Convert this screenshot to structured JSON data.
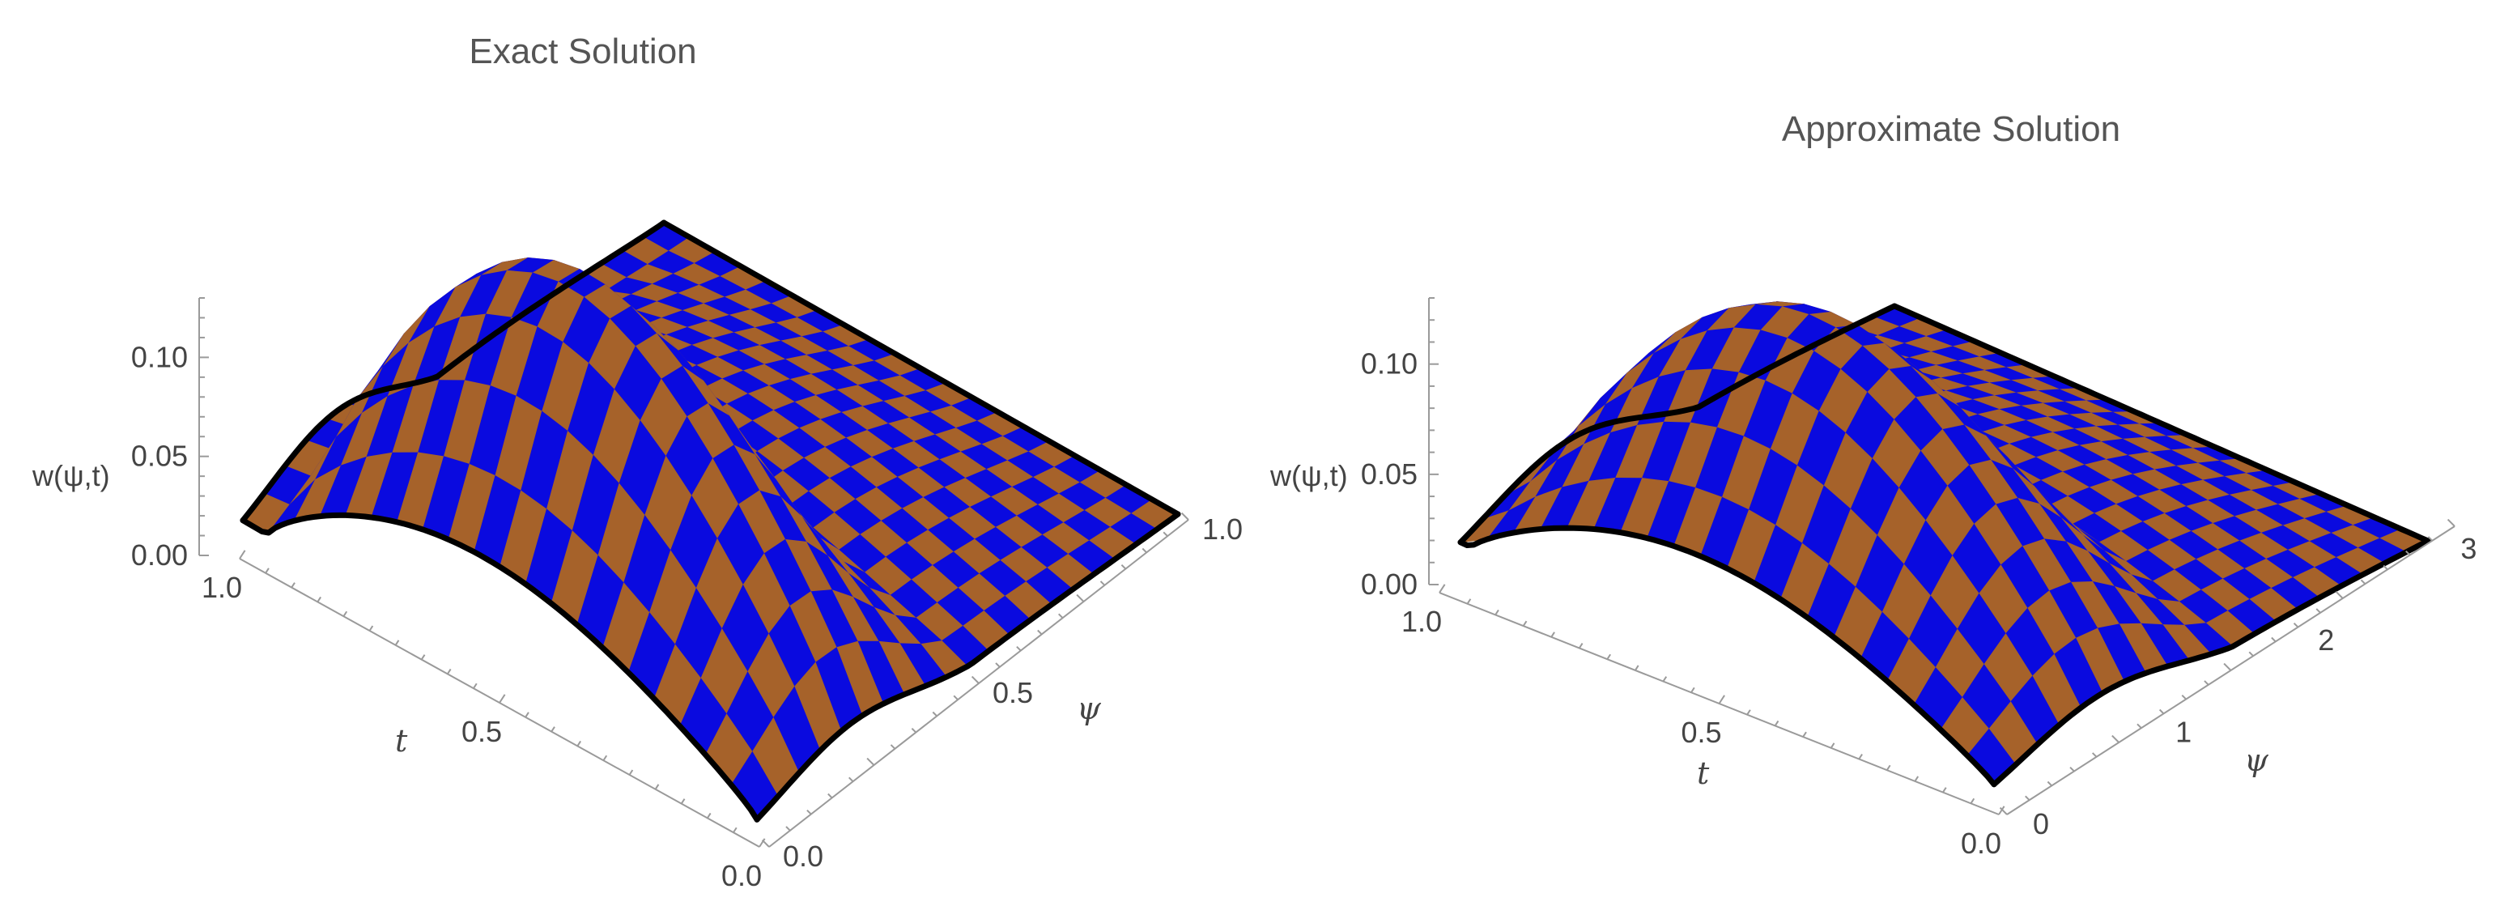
{
  "chart_data": [
    {
      "type": "surface3d",
      "title": "Exact Solution",
      "xlabel": "t",
      "ylabel": "ψ",
      "zlabel": "w(ψ,t)",
      "t_range": [
        0,
        1
      ],
      "psi_range": [
        0,
        1
      ],
      "z_range": [
        0,
        0.13
      ],
      "t_ticks": [
        "0.0",
        "0.5",
        "1.0"
      ],
      "psi_ticks": [
        "0.0",
        "0.5",
        "1.0"
      ],
      "z_ticks": [
        "0.00",
        "0.05",
        "0.10"
      ],
      "profile": "exact",
      "checker_colors": [
        "#0a0adf",
        "#a6622a"
      ],
      "grid": false
    },
    {
      "type": "surface3d",
      "title": "Approximate Solution",
      "xlabel": "t",
      "ylabel": "ψ",
      "zlabel": "w(ψ,t)",
      "t_range": [
        0,
        1
      ],
      "psi_range": [
        0,
        3.14
      ],
      "z_range": [
        0,
        0.13
      ],
      "t_ticks": [
        "0.0",
        "0.5",
        "1.0"
      ],
      "psi_ticks": [
        "0",
        "1",
        "2",
        "3"
      ],
      "z_ticks": [
        "0.00",
        "0.05",
        "0.10"
      ],
      "profile": "approx",
      "checker_colors": [
        "#0a0adf",
        "#a6622a"
      ],
      "grid": false
    }
  ]
}
